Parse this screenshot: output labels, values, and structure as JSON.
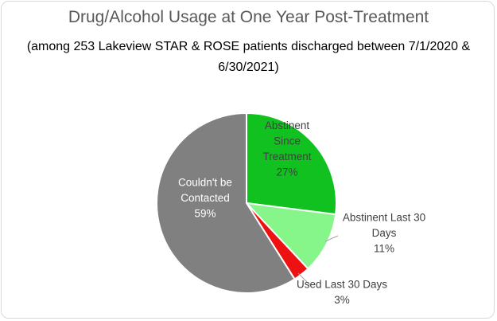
{
  "chart_data": {
    "type": "pie",
    "title": "Drug/Alcohol Usage at One Year Post-Treatment",
    "subtitle_lines": [
      "(among 253 Lakeview STAR & ROSE patients discharged between 7/1/2020 &",
      "6/30/2021)"
    ],
    "start_angle_deg": 0,
    "direction": "clockwise",
    "slices": [
      {
        "label_lines": [
          "Abstinent",
          "Since",
          "Treatment"
        ],
        "value": 27,
        "value_label": "27%",
        "color": "#11c11f",
        "label_placement": "inside",
        "label_color": "#404040"
      },
      {
        "label_lines": [
          "Abstinent Last 30",
          "Days"
        ],
        "value": 11,
        "value_label": "11%",
        "color": "#86f58a",
        "label_placement": "outside",
        "label_color": "#404040"
      },
      {
        "label_lines": [
          "Used Last 30 Days"
        ],
        "value": 3,
        "value_label": "3%",
        "color": "#ee1111",
        "label_placement": "outside",
        "label_color": "#404040"
      },
      {
        "label_lines": [
          "Couldn't be",
          "Contacted"
        ],
        "value": 59,
        "value_label": "59%",
        "color": "#808080",
        "label_placement": "inside",
        "label_color": "#ffffff"
      }
    ]
  }
}
